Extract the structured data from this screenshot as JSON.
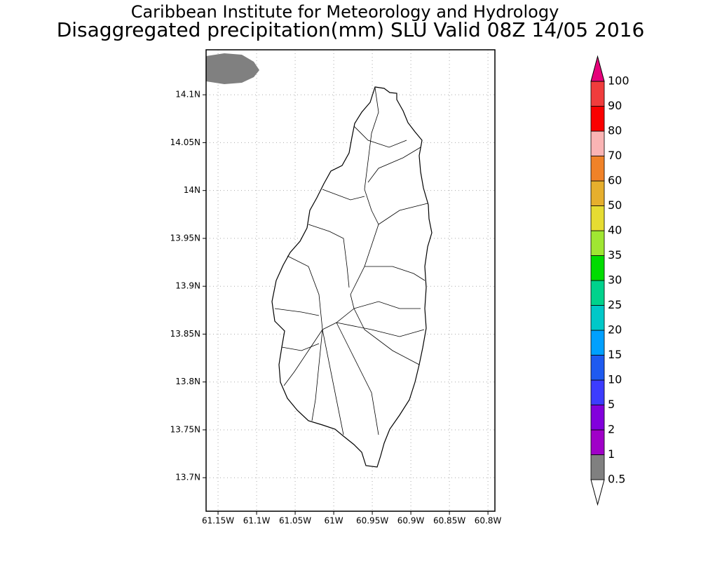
{
  "header": {
    "line1": "Caribbean Institute for Meteorology and Hydrology",
    "line2": "Disaggregated precipitation(mm) SLU Valid 08Z 14/05 2016"
  },
  "map": {
    "xlim": [
      -61.1655,
      -60.791
    ],
    "ylim": [
      13.665,
      14.147
    ],
    "xticks": [
      {
        "value": -61.15,
        "label": "61.15W"
      },
      {
        "value": -61.1,
        "label": "61.1W"
      },
      {
        "value": -61.05,
        "label": "61.05W"
      },
      {
        "value": -61,
        "label": "61W"
      },
      {
        "value": -60.95,
        "label": "60.95W"
      },
      {
        "value": -60.9,
        "label": "60.9W"
      },
      {
        "value": -60.85,
        "label": "60.85W"
      },
      {
        "value": -60.8,
        "label": "60.8W"
      }
    ],
    "yticks": [
      {
        "value": 13.7,
        "label": "13.7N"
      },
      {
        "value": 13.75,
        "label": "13.75N"
      },
      {
        "value": 13.8,
        "label": "13.8N"
      },
      {
        "value": 13.85,
        "label": "13.85N"
      },
      {
        "value": 13.9,
        "label": "13.9N"
      },
      {
        "value": 13.95,
        "label": "13.95N"
      },
      {
        "value": 14,
        "label": "14N"
      },
      {
        "value": 14.05,
        "label": "14.05N"
      },
      {
        "value": 14.1,
        "label": "14.1N"
      }
    ],
    "grid": true
  },
  "colorbar": {
    "levels": [
      0.5,
      1,
      2,
      5,
      10,
      15,
      20,
      25,
      30,
      35,
      40,
      50,
      60,
      70,
      80,
      90,
      100
    ],
    "colors": [
      "#ffffff",
      "#808080",
      "#a000c8",
      "#8200dc",
      "#3c3cff",
      "#1e5af0",
      "#00a0ff",
      "#00c8c8",
      "#00d28c",
      "#00dc00",
      "#a0e632",
      "#e6dc32",
      "#e6af2d",
      "#f08228",
      "#fab4b4",
      "#fa0000",
      "#f03c3c",
      "#e6007a"
    ]
  }
}
